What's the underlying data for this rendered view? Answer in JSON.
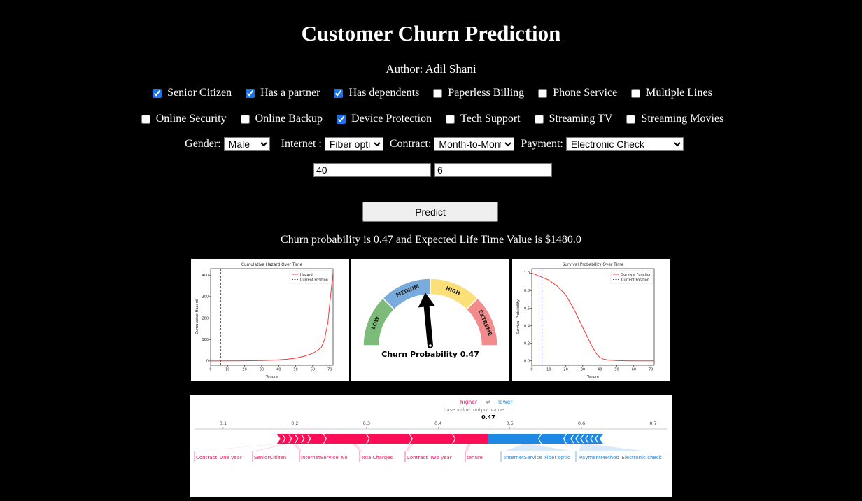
{
  "title": "Customer Churn Prediction",
  "author": "Author: Adil Shani",
  "checkboxes_row1": [
    {
      "label": "Senior Citizen",
      "checked": true
    },
    {
      "label": "Has a partner",
      "checked": true
    },
    {
      "label": "Has dependents",
      "checked": true
    },
    {
      "label": "Paperless Billing",
      "checked": false
    },
    {
      "label": "Phone Service",
      "checked": false
    },
    {
      "label": "Multiple Lines",
      "checked": false
    }
  ],
  "checkboxes_row2": [
    {
      "label": "Online Security",
      "checked": false
    },
    {
      "label": "Online Backup",
      "checked": false
    },
    {
      "label": "Device Protection",
      "checked": true
    },
    {
      "label": "Tech Support",
      "checked": false
    },
    {
      "label": "Streaming TV",
      "checked": false
    },
    {
      "label": "Streaming Movies",
      "checked": false
    }
  ],
  "selects": {
    "gender": {
      "label": "Gender:",
      "value": "Male"
    },
    "internet": {
      "label": "Internet :",
      "value": "Fiber optic"
    },
    "contract": {
      "label": "Contract:",
      "value": "Month-to-Month"
    },
    "payment": {
      "label": "Payment:",
      "value": "Electronic Check"
    }
  },
  "inputs": {
    "monthly": "40",
    "tenure": "6"
  },
  "predict_label": "Predict",
  "result_text": "Churn probability is 0.47 and Expected Life Time Value is $1480.0",
  "chart_data": [
    {
      "type": "line",
      "title": "Cumulative Hazard Over Time",
      "xlabel": "Tenure",
      "ylabel": "Cumulative Hazard",
      "xlim": [
        0,
        72
      ],
      "ylim": [
        -20,
        430
      ],
      "xticks": [
        0,
        10,
        20,
        30,
        40,
        50,
        60,
        70
      ],
      "yticks": [
        0,
        100,
        200,
        300,
        400
      ],
      "series": [
        {
          "name": "Hazard",
          "color": "#ff3333",
          "x": [
            0,
            10,
            20,
            30,
            35,
            40,
            45,
            50,
            55,
            60,
            63,
            65,
            67,
            69,
            70,
            71,
            72
          ],
          "y": [
            0,
            0.2,
            0.8,
            2,
            3,
            5,
            8,
            13,
            22,
            35,
            50,
            62,
            100,
            180,
            260,
            340,
            410
          ]
        },
        {
          "name": "Current Position",
          "color": "#3333ff",
          "style": "dashed",
          "vline": 6
        }
      ],
      "legend": "top-right"
    },
    {
      "type": "gauge",
      "title": "Churn Probability 0.47",
      "segments": [
        {
          "label": "LOW",
          "color": "#7dbb7b"
        },
        {
          "label": "MEDIUM",
          "color": "#79acdc"
        },
        {
          "label": "HIGH",
          "color": "#fbe07a"
        },
        {
          "label": "EXTREME",
          "color": "#f28b8b"
        }
      ],
      "value": 0.47
    },
    {
      "type": "line",
      "title": "Survival Probability Over Time",
      "xlabel": "Tenure",
      "ylabel": "Survival Probability",
      "xlim": [
        0,
        72
      ],
      "ylim": [
        -0.05,
        1.05
      ],
      "xticks": [
        0,
        10,
        20,
        30,
        40,
        50,
        60,
        70
      ],
      "yticks": [
        0.0,
        0.2,
        0.4,
        0.6,
        0.8,
        1.0
      ],
      "series": [
        {
          "name": "Survival Function",
          "color": "#ff3333",
          "x": [
            0,
            5,
            10,
            15,
            20,
            25,
            30,
            35,
            38,
            40,
            42,
            45,
            50,
            55,
            60,
            65,
            70,
            72
          ],
          "y": [
            1.0,
            0.96,
            0.92,
            0.85,
            0.75,
            0.58,
            0.38,
            0.18,
            0.08,
            0.04,
            0.02,
            0.01,
            0.003,
            0.001,
            0,
            0,
            0,
            0
          ]
        },
        {
          "name": "Current Position",
          "color": "#3333ff",
          "style": "dashed",
          "vline": 6
        }
      ],
      "legend": "top-right"
    },
    {
      "type": "force",
      "higher_label": "higher",
      "lower_label": "lower",
      "base_value_label": "base value",
      "output_value_label": "output value",
      "output_value": 0.47,
      "xlim": [
        0.06,
        0.72
      ],
      "xticks": [
        0.1,
        0.2,
        0.3,
        0.4,
        0.5,
        0.6,
        0.7
      ],
      "positive_features": [
        "Contract_One year",
        "SeniorCitizen",
        "InternetService_No",
        "TotalCharges",
        "Contract_Two year",
        "tenure"
      ],
      "negative_features": [
        "InternetService_Fiber optic",
        "PaymentMethod_Electronic check"
      ],
      "positive_range": [
        0.175,
        0.47
      ],
      "negative_range": [
        0.47,
        0.63
      ]
    }
  ]
}
